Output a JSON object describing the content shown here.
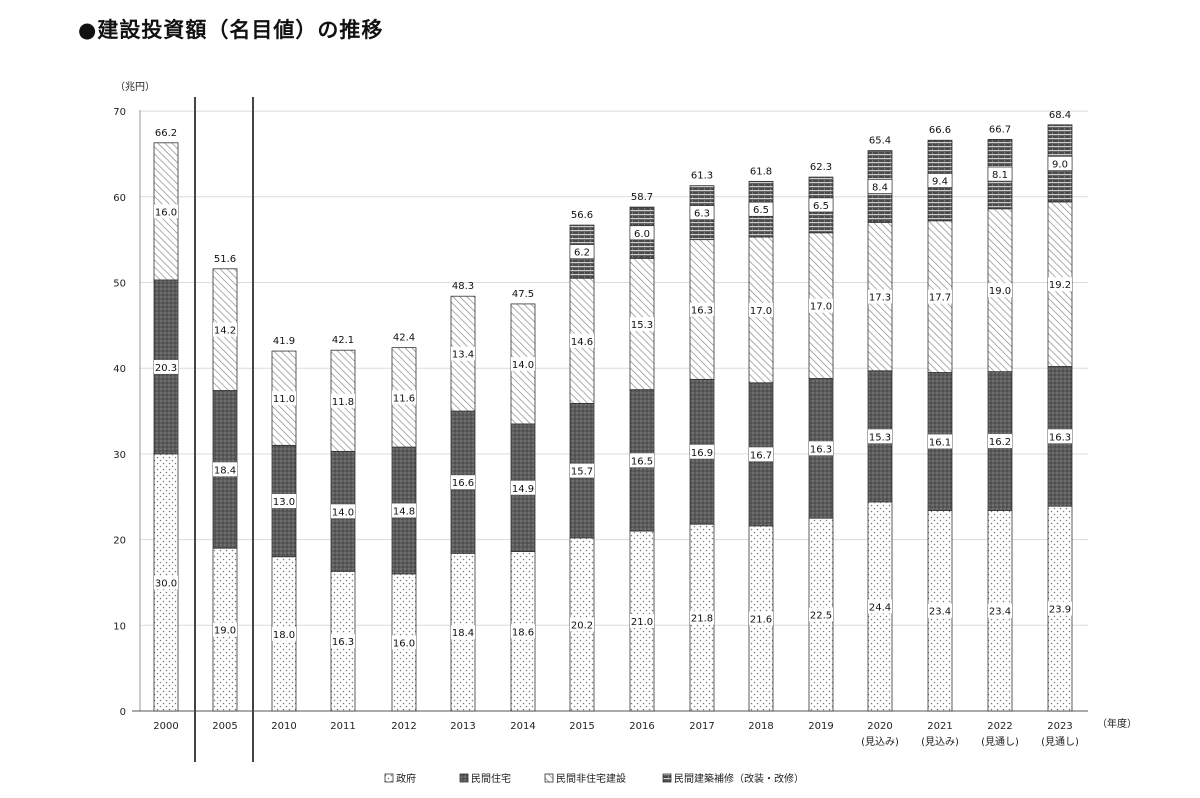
{
  "title": "●建設投資額（名目値）の推移",
  "chart_data": {
    "type": "bar",
    "stacked": true,
    "title": "●建設投資額（名目値）の推移",
    "ylabel": "（兆円）",
    "xlabel": "（年度）",
    "ylim": [
      0,
      70
    ],
    "yticks": [
      0,
      10,
      20,
      30,
      40,
      50,
      60,
      70
    ],
    "categories": [
      "2000",
      "2005",
      "2010",
      "2011",
      "2012",
      "2013",
      "2014",
      "2015",
      "2016",
      "2017",
      "2018",
      "2019",
      "2020",
      "2021",
      "2022",
      "2023"
    ],
    "category_notes": [
      "",
      "",
      "",
      "",
      "",
      "",
      "",
      "",
      "",
      "",
      "",
      "",
      "(見込み)",
      "(見込み)",
      "(見通し)",
      "(見通し)"
    ],
    "series": [
      {
        "name": "政府",
        "pattern": "dots",
        "values": [
          30.0,
          19.0,
          18.0,
          16.3,
          16.0,
          18.4,
          18.6,
          20.2,
          21.0,
          21.8,
          21.6,
          22.5,
          24.4,
          23.4,
          23.4,
          23.9
        ]
      },
      {
        "name": "民間住宅",
        "pattern": "dark",
        "values": [
          20.3,
          18.4,
          13.0,
          14.0,
          14.8,
          16.6,
          14.9,
          15.7,
          16.5,
          16.9,
          16.7,
          16.3,
          15.3,
          16.1,
          16.2,
          16.3
        ]
      },
      {
        "name": "民間非住宅建設",
        "pattern": "hatch",
        "values": [
          16.0,
          14.2,
          11.0,
          11.8,
          11.6,
          13.4,
          14.0,
          14.6,
          15.3,
          16.3,
          17.0,
          17.0,
          17.3,
          17.7,
          19.0,
          19.2
        ]
      },
      {
        "name": "民間建築補修（改装・改修）",
        "pattern": "stripes",
        "values": [
          null,
          null,
          null,
          null,
          null,
          null,
          null,
          6.2,
          6.0,
          6.3,
          6.5,
          6.5,
          8.4,
          9.4,
          8.1,
          9.0
        ]
      }
    ],
    "totals": [
      66.2,
      51.6,
      41.9,
      42.1,
      42.4,
      48.3,
      47.5,
      56.6,
      58.7,
      61.3,
      61.8,
      62.3,
      65.4,
      66.6,
      66.7,
      68.4
    ],
    "axis_break_after": [
      "2000",
      "2005"
    ],
    "legend_position": "bottom",
    "grid": true
  }
}
